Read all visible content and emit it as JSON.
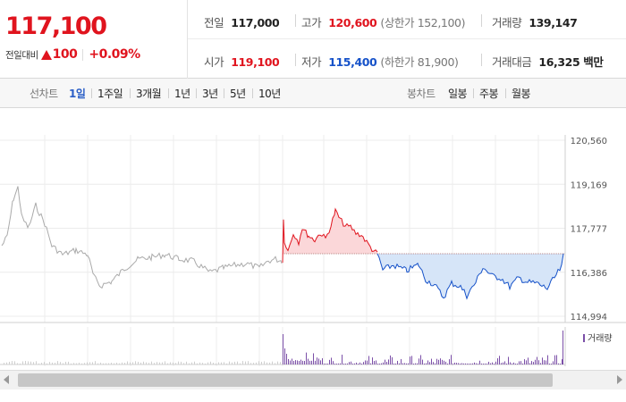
{
  "summary": {
    "current_price": "117,100",
    "change_label": "전일대비",
    "change_value": "100",
    "change_percent": "+0.09%",
    "stats": {
      "prev_close": {
        "label": "전일",
        "value": "117,000"
      },
      "high": {
        "label": "고가",
        "value": "120,600",
        "limit_text": "(상한가 152,100)"
      },
      "volume": {
        "label": "거래량",
        "value": "139,147"
      },
      "open": {
        "label": "시가",
        "value": "119,100"
      },
      "low": {
        "label": "저가",
        "value": "115,400",
        "limit_text": "(하한가 81,900)"
      },
      "amount": {
        "label": "거래대금",
        "value": "16,325",
        "unit": "백만"
      }
    }
  },
  "toolbar": {
    "line_chart_label": "선차트",
    "periods": [
      "1일",
      "1주일",
      "3개월",
      "1년",
      "3년",
      "5년",
      "10년"
    ],
    "active_period": "1일",
    "candle_chart_label": "봉차트",
    "candle_periods": [
      "일봉",
      "주봉",
      "월봉"
    ]
  },
  "colors": {
    "up": "#e0141e",
    "down": "#1652c9",
    "up_fill": "#fbd7d9",
    "down_fill": "#d6e5f8",
    "prev_line": "#aaaaaa",
    "volume": "#7b4fa8"
  },
  "chart_data": {
    "type": "line",
    "y_ticks": [
      "120,560",
      "119,169",
      "117,777",
      "116,386",
      "114,994"
    ],
    "ylim": [
      114994,
      120560
    ],
    "base_value": 117000,
    "volume_legend": "거래량",
    "grid": true
  }
}
